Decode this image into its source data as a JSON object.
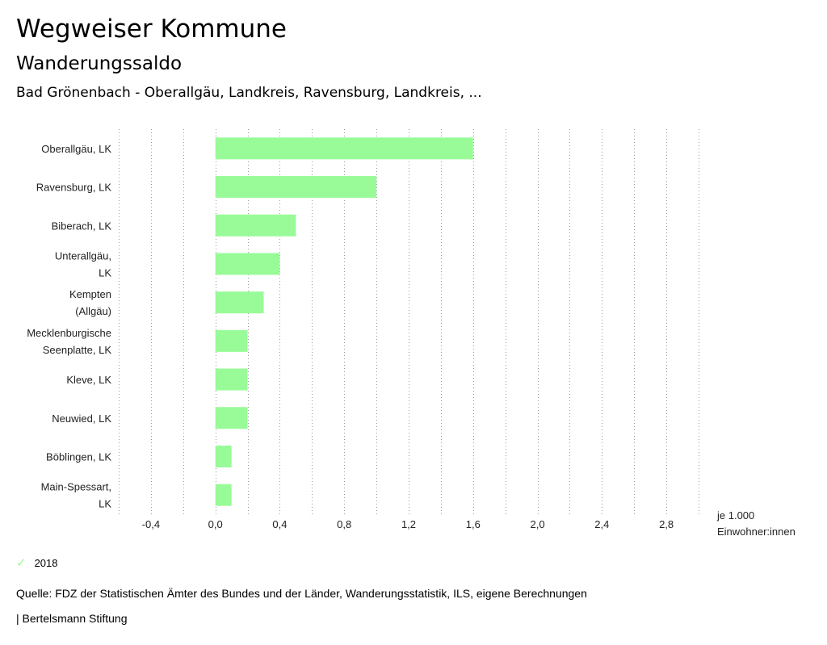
{
  "header": {
    "title": "Wegweiser Kommune",
    "subtitle": "Wanderungssaldo",
    "region": "Bad Grönenbach - Oberallgäu, Landkreis, Ravensburg, Landkreis, ..."
  },
  "chart_data": {
    "type": "bar",
    "orientation": "horizontal",
    "categories": [
      [
        "Oberallgäu, LK"
      ],
      [
        "Ravensburg, LK"
      ],
      [
        "Biberach, LK"
      ],
      [
        "Unterallgäu,",
        "LK"
      ],
      [
        "Kempten",
        "(Allgäu)"
      ],
      [
        "Mecklenburgische",
        "Seenplatte, LK"
      ],
      [
        "Kleve, LK"
      ],
      [
        "Neuwied, LK"
      ],
      [
        "Böblingen, LK"
      ],
      [
        "Main-Spessart,",
        "LK"
      ]
    ],
    "series": [
      {
        "name": "2018",
        "values": [
          1.6,
          1.0,
          0.5,
          0.4,
          0.3,
          0.2,
          0.2,
          0.2,
          0.1,
          0.1
        ]
      }
    ],
    "xlim": [
      -0.6,
      3.0
    ],
    "xticks": [
      -0.4,
      0.0,
      0.4,
      0.8,
      1.2,
      1.6,
      2.0,
      2.4,
      2.8
    ],
    "xtick_labels": [
      "-0,4",
      "0,0",
      "0,4",
      "0,8",
      "1,2",
      "1,6",
      "2,0",
      "2,4",
      "2,8"
    ],
    "xlabel_lines": [
      "je 1.000",
      "Einwohner:innen"
    ],
    "bar_color": "#98fb98",
    "grid": "vertical dotted"
  },
  "legend": {
    "label": "2018",
    "color": "#98fb98"
  },
  "footer": {
    "source": "Quelle: FDZ der Statistischen Ämter des Bundes und der Länder, Wanderungsstatistik, ILS, eigene Berechnungen",
    "credit": "| Bertelsmann Stiftung"
  }
}
